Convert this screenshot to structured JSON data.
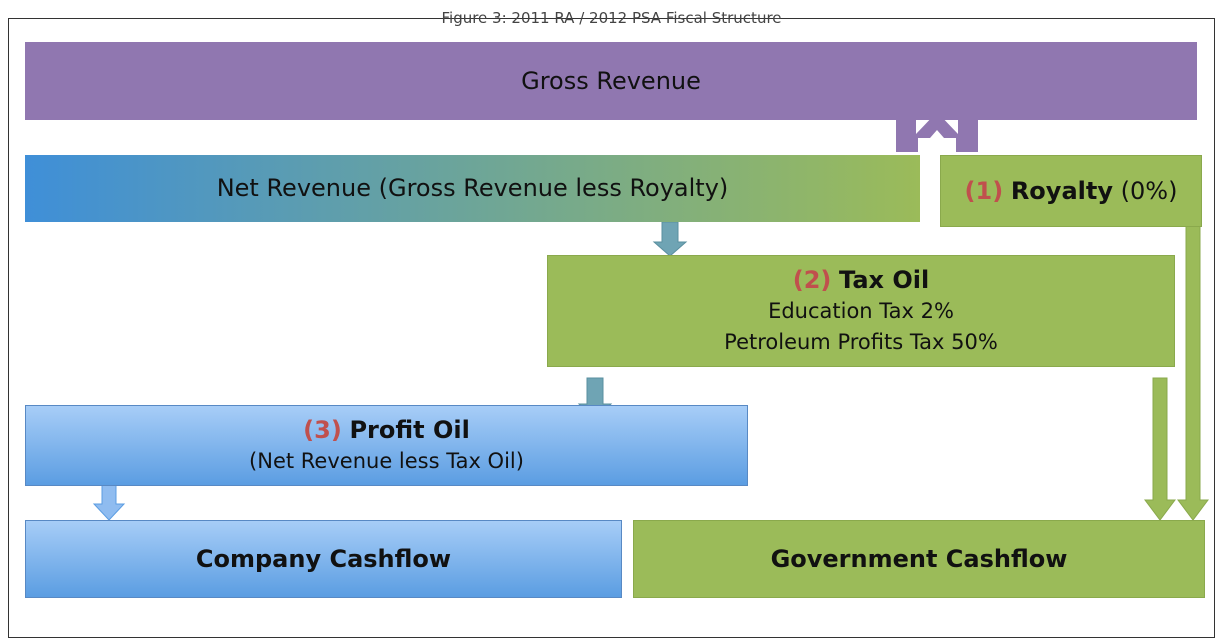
{
  "caption": "Figure 3: 2011 RA / 2012 PSA Fiscal Structure",
  "nodes": [
    {
      "label": "Gross Revenue"
    },
    {
      "label": "Net Revenue (Gross Revenue less Royalty)"
    },
    {
      "number": "(1)",
      "label": "Royalty",
      "detail": "(0%)"
    },
    {
      "number": "(2)",
      "label": "Tax Oil",
      "lines": [
        "Education Tax 2%",
        "Petroleum Profits Tax 50%"
      ]
    },
    {
      "number": "(3)",
      "label": "Profit Oil",
      "lines": [
        "(Net Revenue less Tax Oil)"
      ]
    },
    {
      "label": "Company Cashflow"
    },
    {
      "label": "Government Cashflow"
    }
  ]
}
